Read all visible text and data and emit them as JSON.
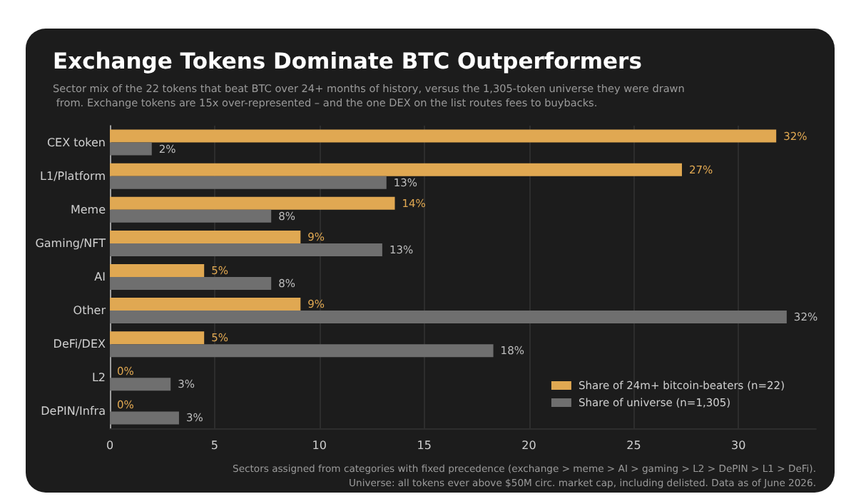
{
  "chart_data": {
    "type": "bar",
    "orientation": "horizontal",
    "title": "Exchange Tokens Dominate BTC Outperformers",
    "subtitle": "Sector mix of the 22 tokens that beat BTC over 24+ months of history, versus the 1,305-token universe they were drawn from. Exchange tokens are 15x over-represented – and the one DEX on the list routes fees to buybacks.",
    "categories": [
      "CEX token",
      "L1/Platform",
      "Meme",
      "Gaming/NFT",
      "AI",
      "Other",
      "DeFi/DEX",
      "L2",
      "DePIN/Infra"
    ],
    "series": [
      {
        "name": "Share of 24m+ bitcoin-beaters (n=22)",
        "color": "#e0a852",
        "values": [
          31.8,
          27.3,
          13.6,
          9.1,
          4.5,
          9.1,
          4.5,
          0,
          0
        ],
        "value_labels": [
          "32%",
          "27%",
          "14%",
          "9%",
          "5%",
          "9%",
          "5%",
          "0%",
          "0%"
        ]
      },
      {
        "name": "Share of universe (n=1,305)",
        "color": "#6f6f6f",
        "values": [
          2.0,
          13.2,
          7.7,
          13.0,
          7.7,
          32.3,
          18.3,
          2.9,
          3.3
        ],
        "value_labels": [
          "2%",
          "13%",
          "8%",
          "13%",
          "8%",
          "32%",
          "18%",
          "3%",
          "3%"
        ]
      }
    ],
    "xlim": [
      0,
      33.7
    ],
    "xticks": [
      0,
      5,
      10,
      15,
      20,
      25,
      30
    ],
    "grid": "x",
    "legend": "bottom right",
    "annotations": [
      "Sectors assigned from categories with fixed precedence (exchange > meme > AI > gaming > L2 > DePIN > L1 > DeFi).",
      "Universe: all tokens ever above $50M circ. market cap, including delisted. Data as of June 2026."
    ]
  }
}
